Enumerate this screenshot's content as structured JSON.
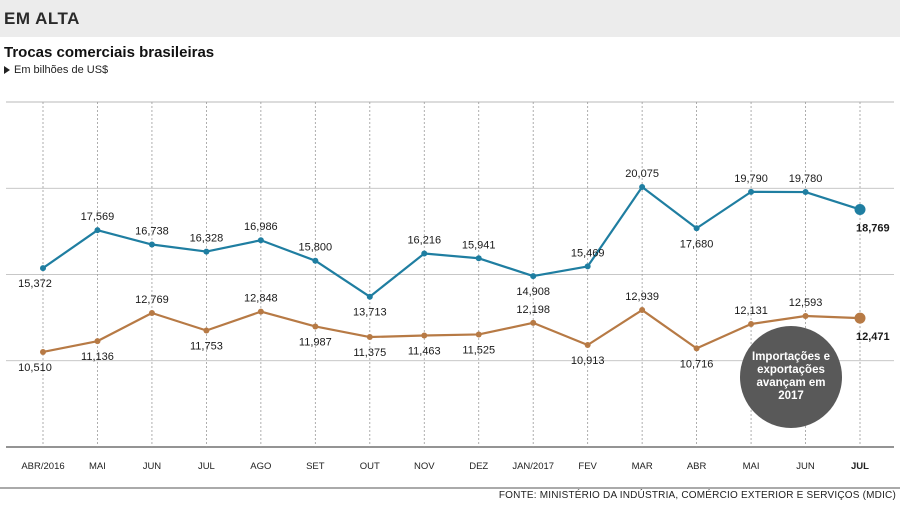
{
  "header": {
    "kicker": "EM ALTA",
    "title": "Trocas comerciais brasileiras",
    "subtitle": "Em bilhões de US$"
  },
  "badge": {
    "text": "Importações e exportações avançam em 2017"
  },
  "footer": {
    "source": "FONTE: MINISTÉRIO DA INDÚSTRIA, COMÉRCIO EXTERIOR E SERVIÇOS (MDIC)"
  },
  "colors": {
    "series_blue": "#1f7ea1",
    "series_brown": "#b77a45",
    "grid": "#999999",
    "badge": "#595959"
  },
  "chart_data": {
    "type": "line",
    "title": "Trocas comerciais brasileiras",
    "ylabel": "Em bilhões de US$",
    "ylim": [
      5,
      25
    ],
    "grid": true,
    "categories": [
      "ABR/2016",
      "MAI",
      "JUN",
      "JUL",
      "AGO",
      "SET",
      "OUT",
      "NOV",
      "DEZ",
      "JAN/2017",
      "FEV",
      "MAR",
      "ABR",
      "MAI",
      "JUN",
      "JUL"
    ],
    "series": [
      {
        "color": "#1f7ea1",
        "values": [
          15.372,
          17.569,
          16.738,
          16.328,
          16.986,
          15.8,
          13.713,
          16.216,
          15.941,
          14.908,
          15.469,
          20.075,
          17.68,
          19.79,
          19.78,
          18.769
        ],
        "labels": [
          "15,372",
          "17,569",
          "16,738",
          "16,328",
          "16,986",
          "15,800",
          "13,713",
          "16,216",
          "15,941",
          "14,908",
          "15,469",
          "20,075",
          "17,680",
          "19,790",
          "19,780",
          "18,769"
        ]
      },
      {
        "color": "#b77a45",
        "values": [
          10.51,
          11.136,
          12.769,
          11.753,
          12.848,
          11.987,
          11.375,
          11.463,
          11.525,
          12.198,
          10.913,
          12.939,
          10.716,
          12.131,
          12.593,
          12.471
        ],
        "labels": [
          "10,510",
          "11,136",
          "12,769",
          "11,753",
          "12,848",
          "11,987",
          "11,375",
          "11,463",
          "11,525",
          "12,198",
          "10,913",
          "12,939",
          "10,716",
          "12,131",
          "12,593",
          "12,471"
        ]
      }
    ]
  }
}
